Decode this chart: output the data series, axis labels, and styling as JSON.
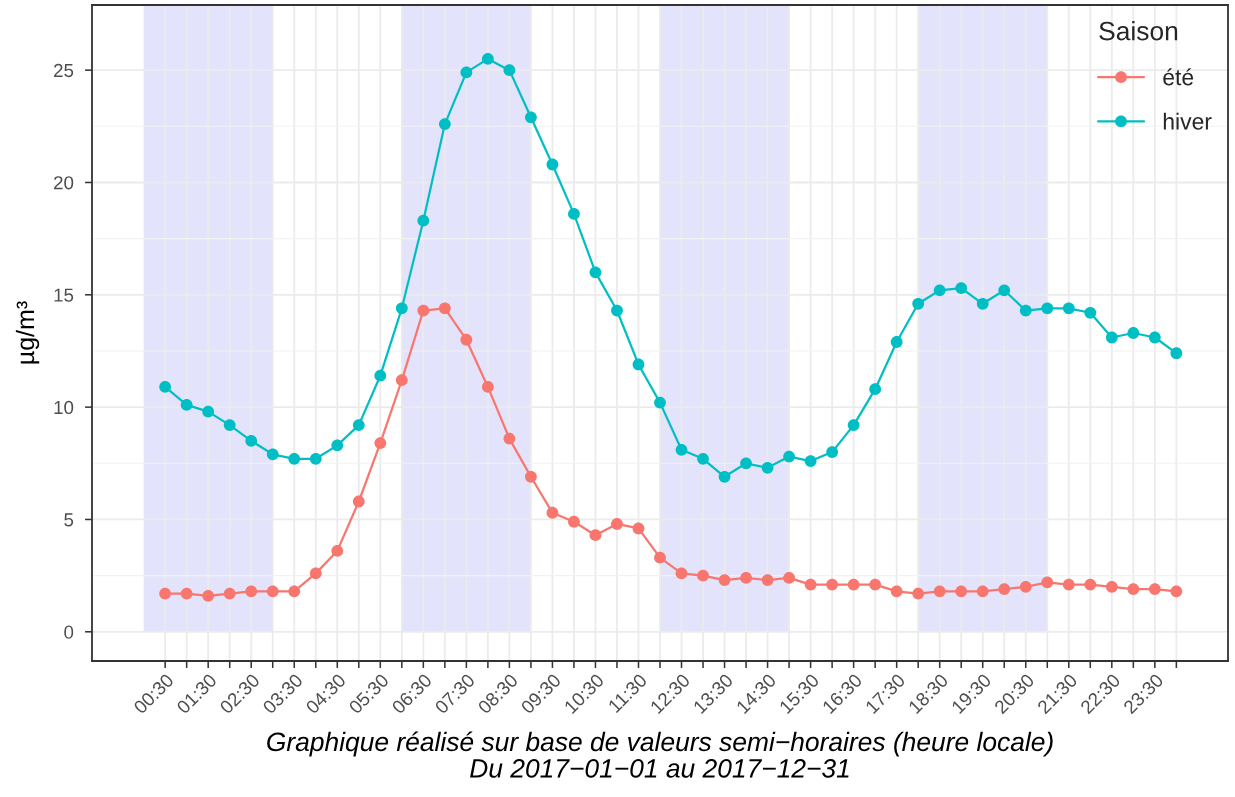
{
  "chart_data": {
    "type": "line",
    "xlabel": "Graphique réalisé sur base de valeurs semi−horaires (heure locale)\nDu 2017−01−01 au 2017−12−31",
    "ylabel": "µg/m³",
    "legend_title": "Saison",
    "x": [
      0.5,
      1,
      1.5,
      2,
      2.5,
      3,
      3.5,
      4,
      4.5,
      5,
      5.5,
      6,
      6.5,
      7,
      7.5,
      8,
      8.5,
      9,
      9.5,
      10,
      10.5,
      11,
      11.5,
      12,
      12.5,
      13,
      13.5,
      14,
      14.5,
      15,
      15.5,
      16,
      16.5,
      17,
      17.5,
      18,
      18.5,
      19,
      19.5,
      20,
      20.5,
      21,
      21.5,
      22,
      22.5,
      23,
      23.5,
      24
    ],
    "series": [
      {
        "name": "été",
        "color": "#f8766d",
        "values": [
          1.7,
          1.7,
          1.6,
          1.7,
          1.8,
          1.8,
          1.8,
          2.6,
          3.6,
          5.8,
          8.4,
          11.2,
          14.3,
          14.4,
          13.0,
          10.9,
          8.6,
          6.9,
          5.3,
          4.9,
          4.3,
          4.8,
          4.6,
          3.3,
          2.6,
          2.5,
          2.3,
          2.4,
          2.3,
          2.4,
          2.1,
          2.1,
          2.1,
          2.1,
          1.8,
          1.7,
          1.8,
          1.8,
          1.8,
          1.9,
          2.0,
          2.2,
          2.1,
          2.1,
          2.0,
          1.9,
          1.9,
          1.8
        ]
      },
      {
        "name": "hiver",
        "color": "#00bfc4",
        "values": [
          10.9,
          10.1,
          9.8,
          9.2,
          8.5,
          7.9,
          7.7,
          7.7,
          8.3,
          9.2,
          11.4,
          14.4,
          18.3,
          22.6,
          24.9,
          25.5,
          25.0,
          22.9,
          20.8,
          18.6,
          16.0,
          14.3,
          11.9,
          10.2,
          8.1,
          7.7,
          6.9,
          7.5,
          7.3,
          7.8,
          7.6,
          8.0,
          9.2,
          10.8,
          12.9,
          14.6,
          15.2,
          15.3,
          14.6,
          15.2,
          14.3,
          14.4,
          14.4,
          14.2,
          13.1,
          13.3,
          13.1,
          12.4
        ]
      }
    ],
    "bands": [
      {
        "axis": "x",
        "from": 0,
        "to": 3,
        "color": "#e3e3fc"
      },
      {
        "axis": "x",
        "from": 6,
        "to": 9,
        "color": "#e3e3fc"
      },
      {
        "axis": "x",
        "from": 12,
        "to": 15,
        "color": "#e3e3fc"
      },
      {
        "axis": "x",
        "from": 18,
        "to": 21,
        "color": "#e3e3fc"
      }
    ],
    "xlim": [
      -1.2,
      25.2
    ],
    "xticks": [
      {
        "value": 0.5,
        "label": "00:30"
      },
      {
        "value": 1,
        "label": null
      },
      {
        "value": 1.5,
        "label": "01:30"
      },
      {
        "value": 2,
        "label": null
      },
      {
        "value": 2.5,
        "label": "02:30"
      },
      {
        "value": 3,
        "label": null
      },
      {
        "value": 3.5,
        "label": "03:30"
      },
      {
        "value": 4,
        "label": null
      },
      {
        "value": 4.5,
        "label": "04:30"
      },
      {
        "value": 5,
        "label": null
      },
      {
        "value": 5.5,
        "label": "05:30"
      },
      {
        "value": 6,
        "label": null
      },
      {
        "value": 6.5,
        "label": "06:30"
      },
      {
        "value": 7,
        "label": null
      },
      {
        "value": 7.5,
        "label": "07:30"
      },
      {
        "value": 8,
        "label": null
      },
      {
        "value": 8.5,
        "label": "08:30"
      },
      {
        "value": 9,
        "label": null
      },
      {
        "value": 9.5,
        "label": "09:30"
      },
      {
        "value": 10,
        "label": null
      },
      {
        "value": 10.5,
        "label": "10:30"
      },
      {
        "value": 11,
        "label": null
      },
      {
        "value": 11.5,
        "label": "11:30"
      },
      {
        "value": 12,
        "label": null
      },
      {
        "value": 12.5,
        "label": "12:30"
      },
      {
        "value": 13,
        "label": null
      },
      {
        "value": 13.5,
        "label": "13:30"
      },
      {
        "value": 14,
        "label": null
      },
      {
        "value": 14.5,
        "label": "14:30"
      },
      {
        "value": 15,
        "label": null
      },
      {
        "value": 15.5,
        "label": "15:30"
      },
      {
        "value": 16,
        "label": null
      },
      {
        "value": 16.5,
        "label": "16:30"
      },
      {
        "value": 17,
        "label": null
      },
      {
        "value": 17.5,
        "label": "17:30"
      },
      {
        "value": 18,
        "label": null
      },
      {
        "value": 18.5,
        "label": "18:30"
      },
      {
        "value": 19,
        "label": null
      },
      {
        "value": 19.5,
        "label": "19:30"
      },
      {
        "value": 20,
        "label": null
      },
      {
        "value": 20.5,
        "label": "20:30"
      },
      {
        "value": 21,
        "label": null
      },
      {
        "value": 21.5,
        "label": "21:30"
      },
      {
        "value": 22,
        "label": null
      },
      {
        "value": 22.5,
        "label": "22:30"
      },
      {
        "value": 23,
        "label": null
      },
      {
        "value": 23.5,
        "label": "23:30"
      },
      {
        "value": 24,
        "label": null
      }
    ],
    "ylim": [
      -1.3,
      27.9
    ],
    "yticks": [
      0,
      5,
      10,
      15,
      20,
      25
    ],
    "grid": true,
    "legend": "top right",
    "marker": "circle",
    "line_style": "solid"
  }
}
